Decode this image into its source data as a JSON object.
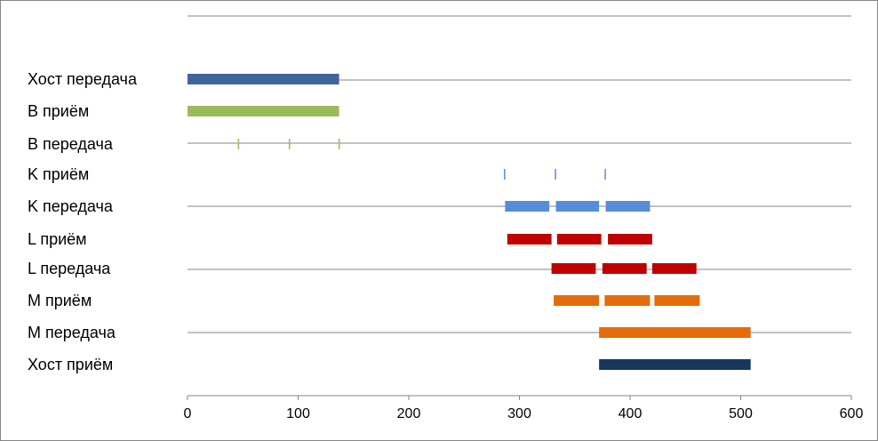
{
  "chart_data": {
    "type": "bar",
    "orientation": "horizontal",
    "title": "",
    "xlabel": "",
    "ylabel": "",
    "xlim": [
      0,
      600
    ],
    "x_ticks": [
      0,
      100,
      200,
      300,
      400,
      500,
      600
    ],
    "x_tick_labels": [
      "0",
      "100",
      "200",
      "300",
      "400",
      "500",
      "600"
    ],
    "grid": true,
    "legend": "none",
    "categories": [
      "Хост передача",
      "B приём",
      "B передача",
      "K приём",
      "K передача",
      "L приём",
      "L передача",
      "M приём",
      "M передача",
      "Хост приём"
    ],
    "series": [
      {
        "category": "Хост передача",
        "color": "#3F6598",
        "segments": [
          [
            0,
            137
          ]
        ]
      },
      {
        "category": "B приём",
        "color": "#9BBB59",
        "segments": [
          [
            0,
            137
          ]
        ]
      },
      {
        "category": "B передача",
        "color": "#9BBB59",
        "segments": [
          [
            45.5,
            46.5
          ],
          [
            91.5,
            92.5
          ],
          [
            136.5,
            137.5
          ]
        ]
      },
      {
        "category": "K приём",
        "color": "#558ED5",
        "segments": [
          [
            286,
            287
          ],
          [
            332,
            333
          ],
          [
            377,
            378
          ]
        ]
      },
      {
        "category": "K передача",
        "color": "#558ED5",
        "segments": [
          [
            287,
            327
          ],
          [
            333,
            372
          ],
          [
            378,
            418
          ]
        ]
      },
      {
        "category": "L приём",
        "color": "#C00000",
        "segments": [
          [
            289,
            329
          ],
          [
            334,
            374
          ],
          [
            380,
            420
          ]
        ]
      },
      {
        "category": "L передача",
        "color": "#C00000",
        "segments": [
          [
            329,
            369
          ],
          [
            375,
            415
          ],
          [
            420,
            460
          ]
        ]
      },
      {
        "category": "M приём",
        "color": "#E46C0A",
        "segments": [
          [
            331,
            372
          ],
          [
            377,
            418
          ],
          [
            422,
            463
          ]
        ]
      },
      {
        "category": "M передача",
        "color": "#E46C0A",
        "segments": [
          [
            372,
            509
          ]
        ]
      },
      {
        "category": "Хост приём",
        "color": "#17375E",
        "segments": [
          [
            372,
            509
          ]
        ]
      }
    ]
  }
}
